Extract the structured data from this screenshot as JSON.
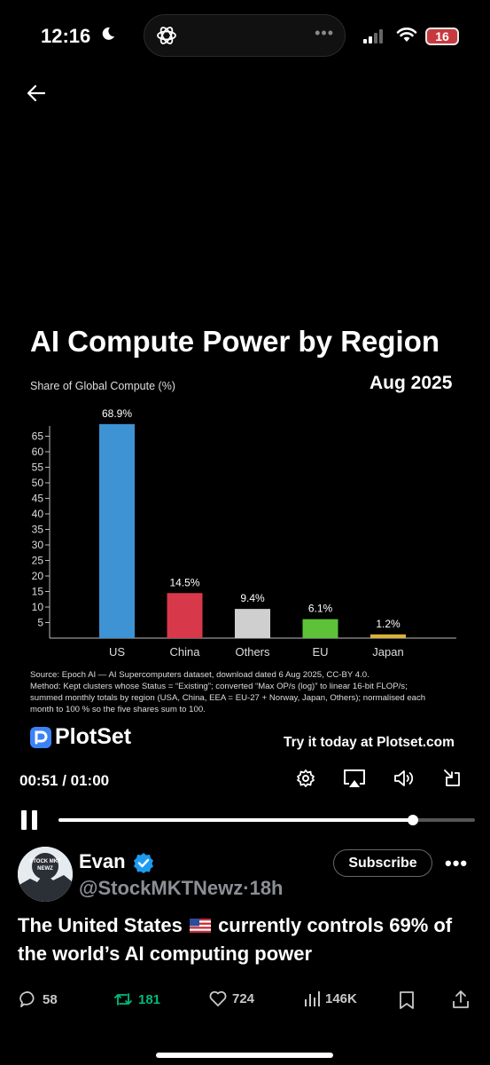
{
  "status_bar": {
    "time": "12:16",
    "battery": "16"
  },
  "chart": {
    "title": "AI Compute Power by Region",
    "subtitle": "Share of Global Compute (%)",
    "date": "Aug 2025",
    "source_lines": [
      "Source: Epoch AI — AI Supercomputers dataset, download dated 6 Aug 2025, CC-BY 4.0.",
      "Method: Kept clusters whose Status = “Existing”; converted “Max OP/s (log)” to linear 16-bit FLOP/s;",
      "summed monthly totals by region (USA, China, EEA = EU-27 + Norway, Japan, Others); normalised each",
      "month to 100 % so the five shares sum to 100."
    ]
  },
  "chart_data": {
    "type": "bar",
    "categories": [
      "US",
      "China",
      "Others",
      "EU",
      "Japan"
    ],
    "values": [
      68.9,
      14.5,
      9.4,
      6.1,
      1.2
    ],
    "data_labels": [
      "68.9%",
      "14.5%",
      "9.4%",
      "6.1%",
      "1.2%"
    ],
    "colors": [
      "#3d93d4",
      "#d7394a",
      "#cfcfcf",
      "#5dc238",
      "#d9b23a"
    ],
    "title": "AI Compute Power by Region",
    "ylabel": "Share of Global Compute (%)",
    "yticks": [
      5,
      10,
      15,
      20,
      25,
      30,
      35,
      40,
      45,
      50,
      55,
      60,
      65
    ],
    "ylim": [
      0,
      70
    ],
    "grid": false
  },
  "brand": {
    "name": "PlotSet",
    "cta": "Try it today at Plotset.com"
  },
  "player": {
    "time": "00:51 / 01:00",
    "progress": 0.85
  },
  "post": {
    "author": "Evan",
    "handle": "@StockMKTNewz",
    "separator": "·",
    "age": "18h",
    "subscribe_label": "Subscribe",
    "more_label": "•••",
    "text_before_flag": "The United States",
    "text_after_flag": "currently controls 69% of the world’s AI computing power",
    "avatar_text": "STOCK MKT NEWZ",
    "replies": "58",
    "reposts": "181",
    "likes": "724",
    "views": "146K",
    "repost_color": "#00ba7c",
    "verified_color": "#1d9bf0"
  }
}
